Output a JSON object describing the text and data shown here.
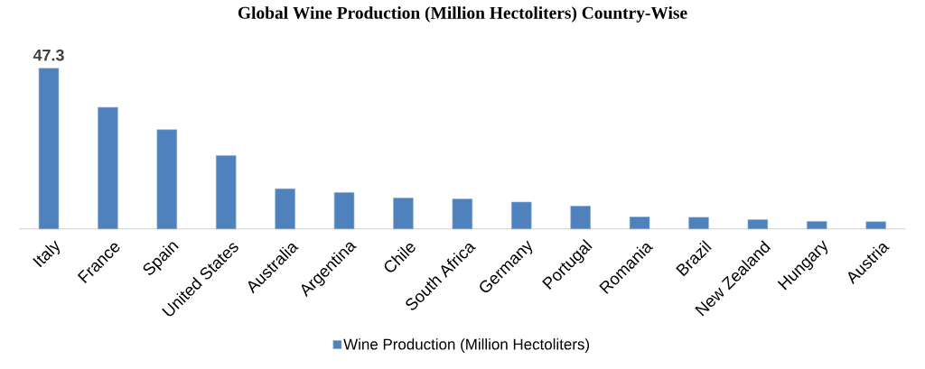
{
  "chart_data": {
    "type": "bar",
    "title": "Global Wine Production (Million Hectoliters) Country-Wise",
    "categories": [
      "Italy",
      "France",
      "Spain",
      "United States",
      "Australia",
      "Argentina",
      "Chile",
      "South Africa",
      "Germany",
      "Portugal",
      "Romania",
      "Brazil",
      "New Zealand",
      "Hungary",
      "Austria"
    ],
    "series": [
      {
        "name": "Wine Production (Million Hectoliters)",
        "color": "#4f81bd",
        "values": [
          47.3,
          35.8,
          29.2,
          21.6,
          11.8,
          10.7,
          9.1,
          8.8,
          7.9,
          6.7,
          3.5,
          3.4,
          2.7,
          2.2,
          2.1
        ],
        "value_labels": [
          "47.3",
          null,
          null,
          null,
          null,
          null,
          null,
          null,
          null,
          null,
          null,
          null,
          null,
          null,
          null
        ]
      }
    ],
    "legend": "bottom"
  }
}
